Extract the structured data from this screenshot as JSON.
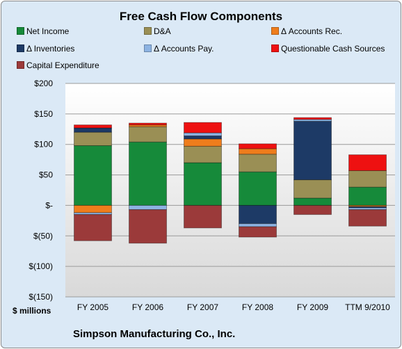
{
  "chart_data": {
    "type": "bar",
    "stacked": true,
    "title": "Free Cash Flow Components",
    "subtitle": "Simpson Manufacturing Co., Inc.",
    "ylabel": "$ millions",
    "categories": [
      "FY 2005",
      "FY 2006",
      "FY 2007",
      "FY 2008",
      "FY 2009",
      "TTM 9/2010"
    ],
    "ylim": [
      -150,
      200
    ],
    "yticks": [
      200,
      150,
      100,
      50,
      0,
      -50,
      -100,
      -150
    ],
    "ytick_labels": [
      "$200",
      "$150",
      "$100",
      "$50",
      "$-",
      "$(50)",
      "$(100)",
      "$(150)"
    ],
    "grid": true,
    "legend_position": "top",
    "series": [
      {
        "name": "Net Income",
        "color": "#168a3a",
        "values": [
          98,
          104,
          70,
          55,
          12,
          30
        ]
      },
      {
        "name": "D&A",
        "color": "#9a8f55",
        "values": [
          22,
          25,
          27,
          29,
          30,
          27
        ]
      },
      {
        "name": "Δ Accounts Rec.",
        "color": "#ee7d1c",
        "values": [
          -12,
          3,
          12,
          9,
          0,
          -2
        ]
      },
      {
        "name": "Δ Inventories",
        "color": "#1d3a66",
        "values": [
          7,
          0,
          5,
          -30,
          96,
          -2
        ]
      },
      {
        "name": "Δ Accounts Pay.",
        "color": "#8db3e2",
        "values": [
          -3,
          -7,
          5,
          -5,
          3,
          -3
        ]
      },
      {
        "name": "Questionable Cash Sources",
        "color": "#ee1111",
        "values": [
          5,
          3,
          17,
          8,
          3,
          26
        ]
      },
      {
        "name": "Capital Expenditure",
        "color": "#9b3a3a",
        "values": [
          -43,
          -55,
          -37,
          -17,
          -15,
          -27
        ]
      }
    ]
  }
}
